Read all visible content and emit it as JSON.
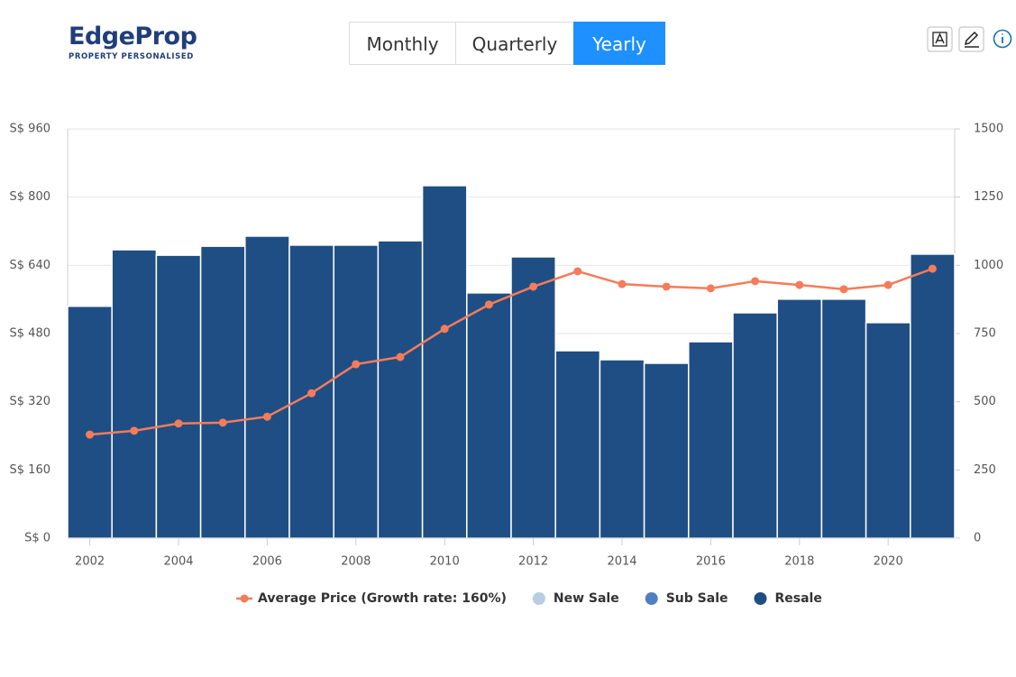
{
  "header": {
    "logo": "EdgeProp",
    "tagline": "PROPERTY PERSONALISED",
    "tabs": [
      "Monthly",
      "Quarterly",
      "Yearly"
    ],
    "active": "Yearly"
  },
  "chart_data": {
    "type": "bar",
    "x": [
      2002,
      2003,
      2004,
      2005,
      2006,
      2007,
      2008,
      2009,
      2010,
      2011,
      2012,
      2013,
      2014,
      2015,
      2016,
      2017,
      2018,
      2019,
      2020,
      2021
    ],
    "xlim": [
      2001.5,
      2021.5
    ],
    "xticks": [
      2002,
      2004,
      2006,
      2008,
      2010,
      2012,
      2014,
      2016,
      2018,
      2020
    ],
    "ylim": [
      0,
      960
    ],
    "yticks": [
      {
        "value": 0,
        "label": "S$ 0"
      },
      {
        "value": 160,
        "label": "S$ 160"
      },
      {
        "value": 320,
        "label": "S$ 320"
      },
      {
        "value": 480,
        "label": "S$ 480"
      },
      {
        "value": 640,
        "label": "S$ 640"
      },
      {
        "value": 800,
        "label": "S$ 800"
      },
      {
        "value": 960,
        "label": "S$ 960"
      }
    ],
    "y2lim": [
      0,
      1500
    ],
    "y2ticks": [
      0,
      250,
      500,
      750,
      1000,
      1250,
      1500
    ],
    "grid": true,
    "series": [
      {
        "name": "Average Price (Growth rate: 160%)",
        "type": "line",
        "color": "#f47c5a",
        "values": [
          243,
          252,
          269,
          271,
          285,
          340,
          408,
          425,
          491,
          548,
          590,
          626,
          596,
          590,
          586,
          603,
          594,
          584,
          594,
          632
        ]
      },
      {
        "name": "New Sale",
        "color": "#b8cce4",
        "axis": "y2"
      },
      {
        "name": "Sub Sale",
        "color": "#4f7fc1",
        "axis": "y2"
      },
      {
        "name": "Resale",
        "type": "bar",
        "color": "#1f4e84",
        "axis": "y2",
        "values": [
          850,
          1057,
          1037,
          1070,
          1107,
          1074,
          1074,
          1090,
          1292,
          899,
          1031,
          687,
          654,
          641,
          720,
          826,
          876,
          876,
          790,
          1041
        ]
      }
    ]
  }
}
